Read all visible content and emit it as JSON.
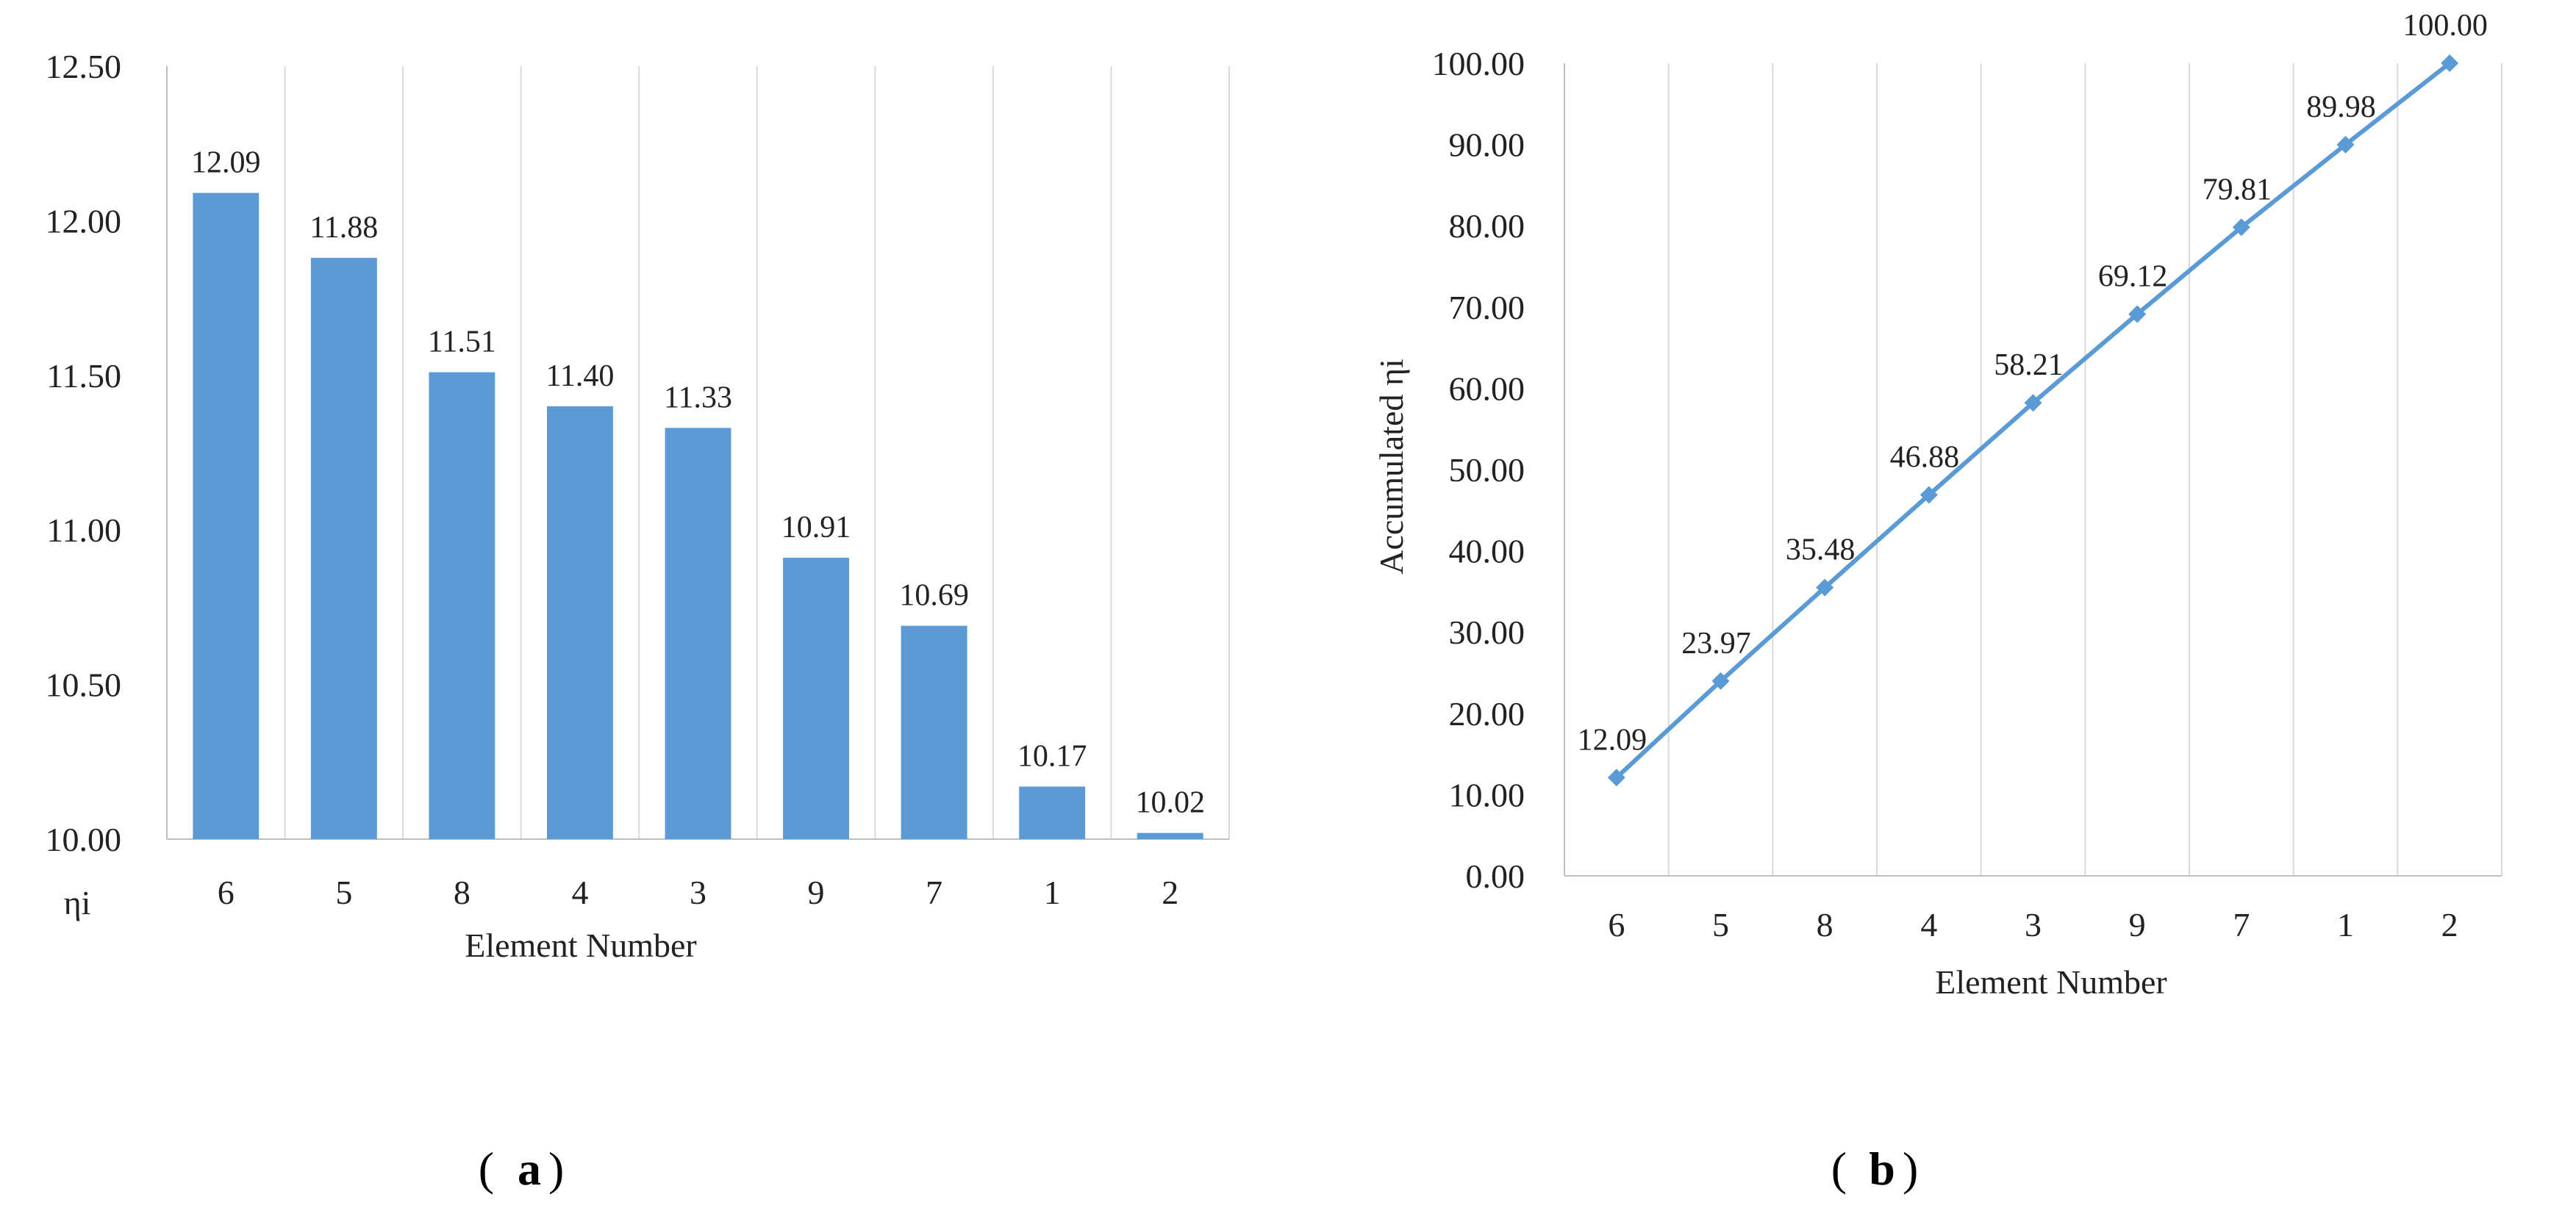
{
  "chart_data": [
    {
      "type": "bar",
      "categories": [
        "6",
        "5",
        "8",
        "4",
        "3",
        "9",
        "7",
        "1",
        "2"
      ],
      "values": [
        12.09,
        11.88,
        11.51,
        11.4,
        11.33,
        10.91,
        10.69,
        10.17,
        10.02
      ],
      "value_labels": [
        "12.09",
        "11.88",
        "11.51",
        "11.40",
        "11.33",
        "10.91",
        "10.69",
        "10.17",
        "10.02"
      ],
      "title": "",
      "xlabel": "Element Number",
      "ylabel": "ηi",
      "ylim": [
        10.0,
        12.5
      ],
      "yticks": [
        "10.00",
        "10.50",
        "11.00",
        "11.50",
        "12.00",
        "12.50"
      ],
      "grid": "vertical",
      "color": "#5b9bd5",
      "panel_label": "a"
    },
    {
      "type": "line",
      "categories": [
        "6",
        "5",
        "8",
        "4",
        "3",
        "9",
        "7",
        "1",
        "2"
      ],
      "values": [
        12.09,
        23.97,
        35.48,
        46.88,
        58.21,
        69.12,
        79.81,
        89.98,
        100.0
      ],
      "value_labels": [
        "12.09",
        "23.97",
        "35.48",
        "46.88",
        "58.21",
        "69.12",
        "79.81",
        "89.98",
        "100.00"
      ],
      "title": "",
      "xlabel": "Element Number",
      "ylabel": "Accumulated   ηi",
      "ylim": [
        0,
        100
      ],
      "yticks": [
        "0.00",
        "10.00",
        "20.00",
        "30.00",
        "40.00",
        "50.00",
        "60.00",
        "70.00",
        "80.00",
        "90.00",
        "100.00"
      ],
      "grid": "vertical",
      "color": "#5b9bd5",
      "marker": "diamond",
      "panel_label": "b"
    }
  ]
}
